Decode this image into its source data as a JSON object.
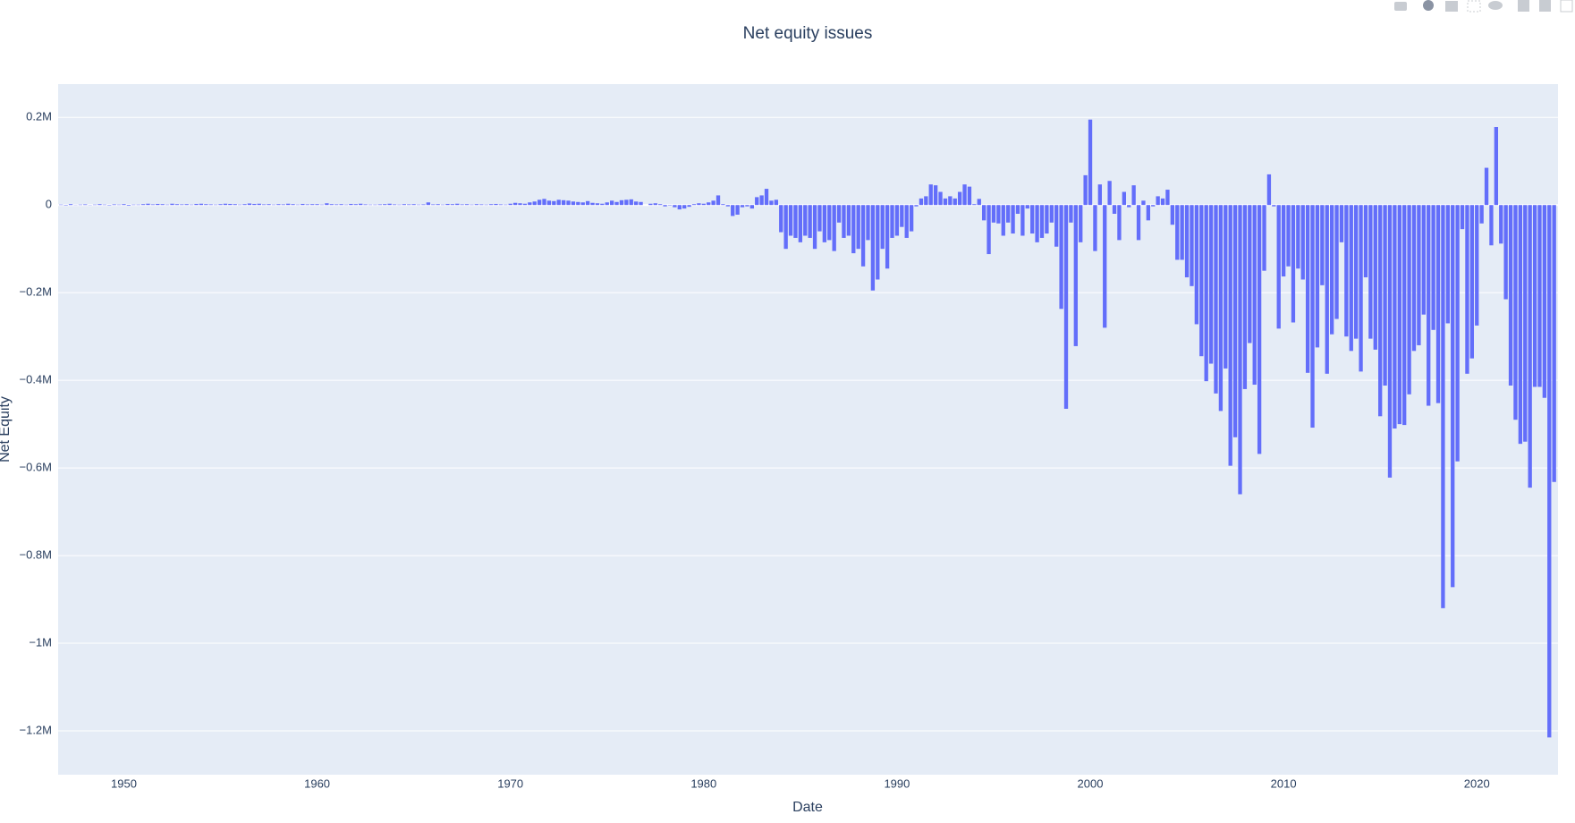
{
  "chart_data": {
    "type": "bar",
    "title": "Net equity issues",
    "x_label": "Date",
    "y_label": "Net Equity",
    "color": "#636efa",
    "grid": true,
    "xlim": [
      1946.6,
      2024.2
    ],
    "xticks": [
      1950,
      1960,
      1970,
      1980,
      1990,
      2000,
      2010,
      2020
    ],
    "ylim": [
      -1300000,
      276000
    ],
    "yticks": [
      {
        "value": -1200000,
        "label": "−1.2M"
      },
      {
        "value": -1000000,
        "label": "−1M"
      },
      {
        "value": -800000,
        "label": "−0.8M"
      },
      {
        "value": -600000,
        "label": "−0.6M"
      },
      {
        "value": -400000,
        "label": "−0.4M"
      },
      {
        "value": -200000,
        "label": "−0.2M"
      },
      0,
      {
        "value": 200000,
        "label": "0.2M"
      }
    ],
    "x": [
      1946.75,
      1947,
      1947.25,
      1947.5,
      1947.75,
      1948,
      1948.25,
      1948.5,
      1948.75,
      1949,
      1949.25,
      1949.5,
      1949.75,
      1950,
      1950.25,
      1950.5,
      1950.75,
      1951,
      1951.25,
      1951.5,
      1951.75,
      1952,
      1952.25,
      1952.5,
      1952.75,
      1953,
      1953.25,
      1953.5,
      1953.75,
      1954,
      1954.25,
      1954.5,
      1954.75,
      1955,
      1955.25,
      1955.5,
      1955.75,
      1956,
      1956.25,
      1956.5,
      1956.75,
      1957,
      1957.25,
      1957.5,
      1957.75,
      1958,
      1958.25,
      1958.5,
      1958.75,
      1959,
      1959.25,
      1959.5,
      1959.75,
      1960,
      1960.25,
      1960.5,
      1960.75,
      1961,
      1961.25,
      1961.5,
      1961.75,
      1962,
      1962.25,
      1962.5,
      1962.75,
      1963,
      1963.25,
      1963.5,
      1963.75,
      1964,
      1964.25,
      1964.5,
      1964.75,
      1965,
      1965.25,
      1965.5,
      1965.75,
      1966,
      1966.25,
      1966.5,
      1966.75,
      1967,
      1967.25,
      1967.5,
      1967.75,
      1968,
      1968.25,
      1968.5,
      1968.75,
      1969,
      1969.25,
      1969.5,
      1969.75,
      1970,
      1970.25,
      1970.5,
      1970.75,
      1971,
      1971.25,
      1971.5,
      1971.75,
      1972,
      1972.25,
      1972.5,
      1972.75,
      1973,
      1973.25,
      1973.5,
      1973.75,
      1974,
      1974.25,
      1974.5,
      1974.75,
      1975,
      1975.25,
      1975.5,
      1975.75,
      1976,
      1976.25,
      1976.5,
      1976.75,
      1977,
      1977.25,
      1977.5,
      1977.75,
      1978,
      1978.25,
      1978.5,
      1978.75,
      1979,
      1979.25,
      1979.5,
      1979.75,
      1980,
      1980.25,
      1980.5,
      1980.75,
      1981,
      1981.25,
      1981.5,
      1981.75,
      1982,
      1982.25,
      1982.5,
      1982.75,
      1983,
      1983.25,
      1983.5,
      1983.75,
      1984,
      1984.25,
      1984.5,
      1984.75,
      1985,
      1985.25,
      1985.5,
      1985.75,
      1986,
      1986.25,
      1986.5,
      1986.75,
      1987,
      1987.25,
      1987.5,
      1987.75,
      1988,
      1988.25,
      1988.5,
      1988.75,
      1989,
      1989.25,
      1989.5,
      1989.75,
      1990,
      1990.25,
      1990.5,
      1990.75,
      1991,
      1991.25,
      1991.5,
      1991.75,
      1992,
      1992.25,
      1992.5,
      1992.75,
      1993,
      1993.25,
      1993.5,
      1993.75,
      1994,
      1994.25,
      1994.5,
      1994.75,
      1995,
      1995.25,
      1995.5,
      1995.75,
      1996,
      1996.25,
      1996.5,
      1996.75,
      1997,
      1997.25,
      1997.5,
      1997.75,
      1998,
      1998.25,
      1998.5,
      1998.75,
      1999,
      1999.25,
      1999.5,
      1999.75,
      2000,
      2000.25,
      2000.5,
      2000.75,
      2001,
      2001.25,
      2001.5,
      2001.75,
      2002,
      2002.25,
      2002.5,
      2002.75,
      2003,
      2003.25,
      2003.5,
      2003.75,
      2004,
      2004.25,
      2004.5,
      2004.75,
      2005,
      2005.25,
      2005.5,
      2005.75,
      2006,
      2006.25,
      2006.5,
      2006.75,
      2007,
      2007.25,
      2007.5,
      2007.75,
      2008,
      2008.25,
      2008.5,
      2008.75,
      2009,
      2009.25,
      2009.5,
      2009.75,
      2010,
      2010.25,
      2010.5,
      2010.75,
      2011,
      2011.25,
      2011.5,
      2011.75,
      2012,
      2012.25,
      2012.5,
      2012.75,
      2013,
      2013.25,
      2013.5,
      2013.75,
      2014,
      2014.25,
      2014.5,
      2014.75,
      2015,
      2015.25,
      2015.5,
      2015.75,
      2016,
      2016.25,
      2016.5,
      2016.75,
      2017,
      2017.25,
      2017.5,
      2017.75,
      2018,
      2018.25,
      2018.5,
      2018.75,
      2019,
      2019.25,
      2019.5,
      2019.75,
      2020,
      2020.25,
      2020.5,
      2020.75,
      2021,
      2021.25,
      2021.5,
      2021.75,
      2022,
      2022.25,
      2022.5,
      2022.75,
      2023,
      2023.25,
      2023.5,
      2023.75,
      2024
    ],
    "values": [
      1000,
      -1000,
      2000,
      500,
      1000,
      1500,
      -500,
      1000,
      2000,
      1000,
      -1000,
      1500,
      1000,
      2000,
      -1500,
      1000,
      1000,
      2000,
      3000,
      1500,
      2500,
      2000,
      1000,
      3000,
      2000,
      1500,
      2000,
      1000,
      2500,
      3000,
      2000,
      1500,
      1000,
      2000,
      3000,
      2500,
      2000,
      1000,
      2000,
      3500,
      2500,
      3000,
      1500,
      2000,
      1000,
      2000,
      1500,
      3000,
      2000,
      1000,
      2500,
      1500,
      2000,
      2000,
      1000,
      4000,
      2000,
      1500,
      2000,
      1000,
      2500,
      2000,
      3000,
      1500,
      1000,
      1000,
      1500,
      2000,
      3000,
      1500,
      1000,
      2000,
      1500,
      2000,
      1000,
      1500,
      6000,
      1500,
      2000,
      1000,
      2500,
      2000,
      3000,
      1500,
      2000,
      1000,
      2000,
      1500,
      1000,
      2000,
      2500,
      1500,
      1000,
      3000,
      5000,
      4000,
      3000,
      6000,
      8000,
      12000,
      14000,
      10000,
      9000,
      12000,
      11000,
      10000,
      8000,
      7000,
      6000,
      9000,
      5000,
      4000,
      3000,
      6000,
      10000,
      7000,
      11000,
      12000,
      13000,
      8000,
      7000,
      0,
      3000,
      4000,
      2000,
      -3000,
      -1000,
      -5000,
      -10000,
      -8000,
      -4000,
      2000,
      4000,
      3000,
      6000,
      10000,
      22000,
      2000,
      -3000,
      -25000,
      -22000,
      -5000,
      -3000,
      -8000,
      18000,
      22000,
      37000,
      10000,
      12000,
      -62000,
      -100000,
      -70000,
      -75000,
      -85000,
      -70000,
      -75000,
      -100000,
      -60000,
      -85000,
      -80000,
      -105000,
      -40000,
      -75000,
      -70000,
      -110000,
      -100000,
      -140000,
      -80000,
      -195000,
      -170000,
      -100000,
      -145000,
      -75000,
      -70000,
      -50000,
      -75000,
      -60000,
      -3000,
      15000,
      20000,
      47000,
      45000,
      30000,
      15000,
      20000,
      15000,
      30000,
      47000,
      42000,
      2000,
      14000,
      -35000,
      -112000,
      -40000,
      -42000,
      -70000,
      -40000,
      -65000,
      -20000,
      -70000,
      -8000,
      -65000,
      -85000,
      -75000,
      -65000,
      -40000,
      -95000,
      -237000,
      -465000,
      -40000,
      -322000,
      -85000,
      68000,
      195000,
      -105000,
      47000,
      -280000,
      55000,
      -20000,
      -80000,
      30000,
      -5000,
      45000,
      -80000,
      10000,
      -35000,
      -3000,
      20000,
      15000,
      35000,
      -45000,
      -125000,
      -125000,
      -165000,
      -185000,
      -272000,
      -345000,
      -402000,
      -362000,
      -430000,
      -470000,
      -373000,
      -595000,
      -530000,
      -660000,
      -420000,
      -315000,
      -410000,
      -568000,
      -150000,
      70000,
      -3000,
      -282000,
      -163000,
      -140000,
      -268000,
      -145000,
      -170000,
      -383000,
      -508000,
      -325000,
      -183000,
      -385000,
      -295000,
      -260000,
      -85000,
      -300000,
      -333000,
      -305000,
      -380000,
      -165000,
      -305000,
      -330000,
      -482000,
      -412000,
      -622000,
      -510000,
      -500000,
      -502000,
      -432000,
      -333000,
      -320000,
      -250000,
      -458000,
      -285000,
      -452000,
      -920000,
      -270000,
      -872000,
      -585000,
      -55000,
      -385000,
      -350000,
      -275000,
      -42000,
      85000,
      -92000,
      178000,
      -88000,
      -215000,
      -412000,
      -490000,
      -545000,
      -540000,
      -645000,
      -415000,
      -415000,
      -440000,
      -1215000,
      -632000
    ]
  }
}
